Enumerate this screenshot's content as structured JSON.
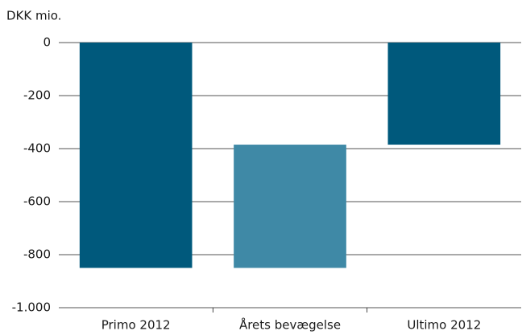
{
  "chart_data": {
    "type": "waterfall",
    "y_label": "DKK mio.",
    "categories": [
      "Primo 2012",
      "Årets bevægelse",
      "Ultimo 2012"
    ],
    "values": [
      -850,
      465,
      -385
    ],
    "totals": [
      0,
      2
    ],
    "colors": [
      "#00597c",
      "#3f89a6",
      "#00597c"
    ],
    "ylim": [
      -1000,
      0
    ],
    "yticks": [
      {
        "value": -1000,
        "label": "-1.000"
      },
      -800,
      -600,
      -400,
      -200,
      0
    ],
    "grid": true
  }
}
